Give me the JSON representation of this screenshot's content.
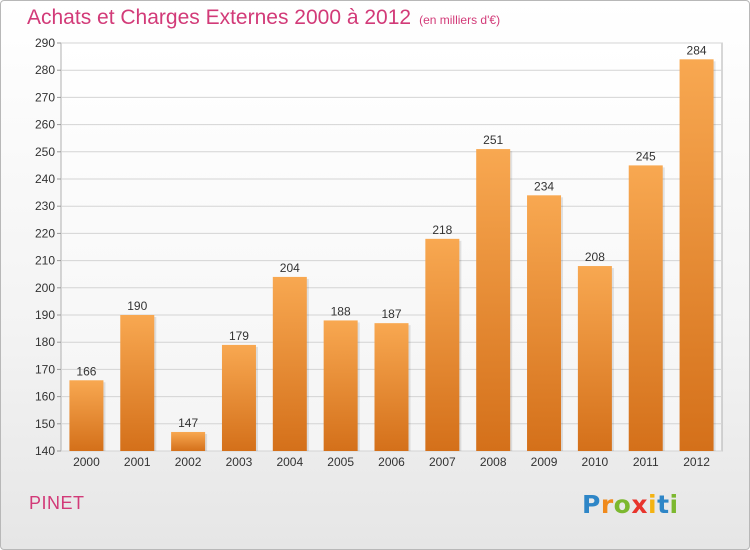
{
  "header": {
    "title": "Achats et Charges Externes 2000 à 2012",
    "unit": "(en milliers d'€)"
  },
  "footer": {
    "commune": "PINET",
    "logo": "Proxiti"
  },
  "colors": {
    "accent": "#d23a78",
    "bar_top": "#f7a24e",
    "bar_bottom": "#d6721a"
  },
  "chart_data": {
    "type": "bar",
    "title": "Achats et Charges Externes 2000 à 2012",
    "subtitle": "(en milliers d'€)",
    "categories": [
      "2000",
      "2001",
      "2002",
      "2003",
      "2004",
      "2005",
      "2006",
      "2007",
      "2008",
      "2009",
      "2010",
      "2011",
      "2012"
    ],
    "values": [
      166,
      190,
      147,
      179,
      204,
      188,
      187,
      218,
      251,
      234,
      208,
      245,
      284
    ],
    "ylim": [
      140,
      290
    ],
    "yticks": [
      140,
      150,
      160,
      170,
      180,
      190,
      200,
      210,
      220,
      230,
      240,
      250,
      260,
      270,
      280,
      290
    ],
    "grid": true,
    "xlabel": "",
    "ylabel": ""
  }
}
